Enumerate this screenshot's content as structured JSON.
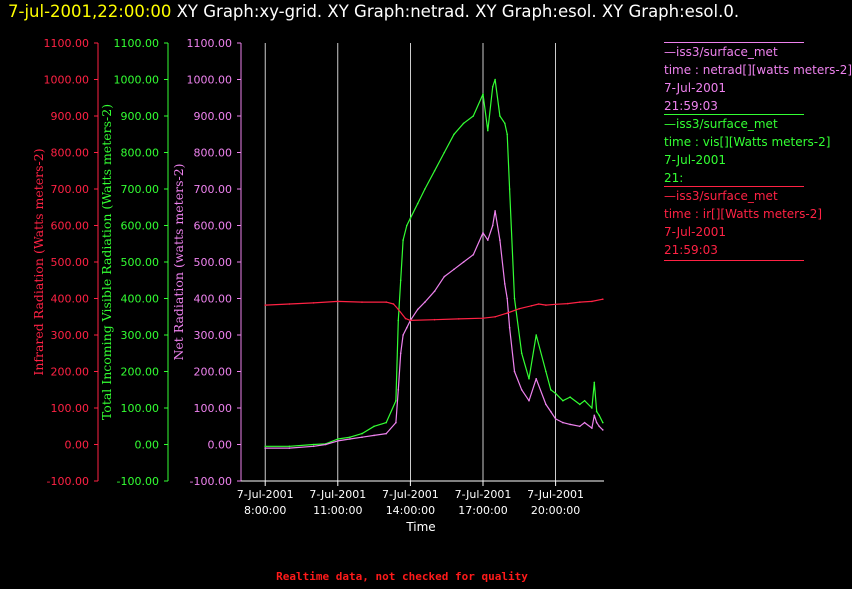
{
  "title": {
    "timestamp": "7-jul-2001,22:00:00",
    "graphs": "XY Graph:xy-grid.  XY Graph:netrad.  XY Graph:esol.  XY Graph:esol.0."
  },
  "footer": "Realtime data, not checked for quality",
  "colors": {
    "background": "#000000",
    "infrared": "#ff2244",
    "visible": "#33ff33",
    "net": "#ee82ee",
    "grid": "#ffffff"
  },
  "legend": [
    {
      "name": "netrad",
      "line1": "—iss3/surface_met",
      "line2": "time : netrad[][watts meters-2]",
      "line3": "7-Jul-2001",
      "line4": "21:59:03",
      "color": "#ee82ee"
    },
    {
      "name": "vis",
      "line1": "—iss3/surface_met",
      "line2": "time : vis[][Watts meters-2]",
      "line3": "7-Jul-2001",
      "line4": "21:",
      "color": "#33ff33"
    },
    {
      "name": "ir",
      "line1": "—iss3/surface_met",
      "line2": "time : ir[][Watts meters-2]",
      "line3": "7-Jul-2001",
      "line4": "21:59:03",
      "color": "#ff2244"
    }
  ],
  "chart_data": {
    "type": "line",
    "xlabel": "Time",
    "x_ticks": [
      {
        "hour": 8,
        "date": "7-Jul-2001",
        "time": "8:00:00"
      },
      {
        "hour": 11,
        "date": "7-Jul-2001",
        "time": "11:00:00"
      },
      {
        "hour": 14,
        "date": "7-Jul-2001",
        "time": "14:00:00"
      },
      {
        "hour": 17,
        "date": "7-Jul-2001",
        "time": "17:00:00"
      },
      {
        "hour": 20,
        "date": "7-Jul-2001",
        "time": "20:00:00"
      }
    ],
    "xlim_hours": [
      7.0,
      22.0
    ],
    "ylim": [
      -100,
      1100
    ],
    "y_ticks": [
      "-100.00",
      "0.00",
      "100.00",
      "200.00",
      "300.00",
      "400.00",
      "500.00",
      "600.00",
      "700.00",
      "800.00",
      "900.00",
      "1000.00",
      "1100.00"
    ],
    "axes": [
      {
        "name": "infrared",
        "label": "Infrared Radiation (Watts meters-2)",
        "color": "#ff2244"
      },
      {
        "name": "visible",
        "label": "Total Incoming Visible Radiation (Watts meters-2)",
        "color": "#33ff33"
      },
      {
        "name": "net",
        "label": "Net Radiation (watts meters-2)",
        "color": "#ee82ee"
      }
    ],
    "grid": "vertical",
    "series": [
      {
        "name": "vis",
        "color": "#33ff33",
        "x": [
          8.0,
          9.0,
          10.0,
          10.5,
          11.0,
          11.5,
          12.0,
          12.5,
          13.0,
          13.4,
          13.5,
          13.6,
          13.7,
          13.85,
          14.0,
          14.3,
          14.6,
          15.0,
          15.4,
          15.8,
          16.2,
          16.6,
          17.0,
          17.2,
          17.4,
          17.5,
          17.7,
          17.9,
          18.0,
          18.1,
          18.3,
          18.6,
          18.9,
          19.2,
          19.6,
          19.8,
          20.0,
          20.3,
          20.6,
          21.0,
          21.2,
          21.5,
          21.6,
          21.7,
          21.8,
          21.95
        ],
        "y": [
          -5,
          -5,
          0,
          2,
          15,
          20,
          30,
          50,
          60,
          120,
          340,
          450,
          560,
          600,
          620,
          660,
          700,
          750,
          800,
          850,
          880,
          900,
          960,
          860,
          980,
          1000,
          900,
          880,
          850,
          700,
          400,
          250,
          180,
          300,
          200,
          150,
          140,
          120,
          130,
          110,
          120,
          100,
          170,
          90,
          80,
          60
        ]
      },
      {
        "name": "netrad",
        "color": "#ee82ee",
        "x": [
          8.0,
          9.0,
          10.0,
          10.5,
          11.0,
          11.5,
          12.0,
          12.5,
          13.0,
          13.4,
          13.5,
          13.6,
          13.7,
          13.85,
          14.0,
          14.3,
          14.6,
          15.0,
          15.4,
          15.8,
          16.2,
          16.6,
          17.0,
          17.2,
          17.4,
          17.5,
          17.7,
          17.9,
          18.0,
          18.1,
          18.3,
          18.6,
          18.9,
          19.2,
          19.6,
          19.8,
          20.0,
          20.3,
          20.6,
          21.0,
          21.2,
          21.5,
          21.6,
          21.7,
          21.8,
          21.95
        ],
        "y": [
          -10,
          -10,
          -5,
          0,
          10,
          15,
          20,
          25,
          30,
          60,
          150,
          250,
          300,
          320,
          340,
          370,
          390,
          420,
          460,
          480,
          500,
          520,
          580,
          560,
          600,
          640,
          560,
          440,
          400,
          320,
          200,
          150,
          120,
          180,
          110,
          90,
          70,
          60,
          55,
          50,
          60,
          45,
          80,
          60,
          50,
          40
        ]
      },
      {
        "name": "ir",
        "color": "#ff2244",
        "x": [
          8.0,
          9.0,
          10.0,
          11.0,
          12.0,
          13.0,
          13.3,
          13.5,
          13.8,
          14.0,
          15.0,
          16.0,
          17.0,
          17.5,
          18.0,
          18.5,
          19.0,
          19.3,
          19.6,
          20.0,
          20.5,
          21.0,
          21.5,
          21.95
        ],
        "y": [
          382,
          385,
          388,
          392,
          390,
          390,
          385,
          370,
          345,
          340,
          342,
          344,
          346,
          350,
          360,
          372,
          380,
          385,
          382,
          384,
          386,
          390,
          392,
          398
        ]
      }
    ]
  }
}
